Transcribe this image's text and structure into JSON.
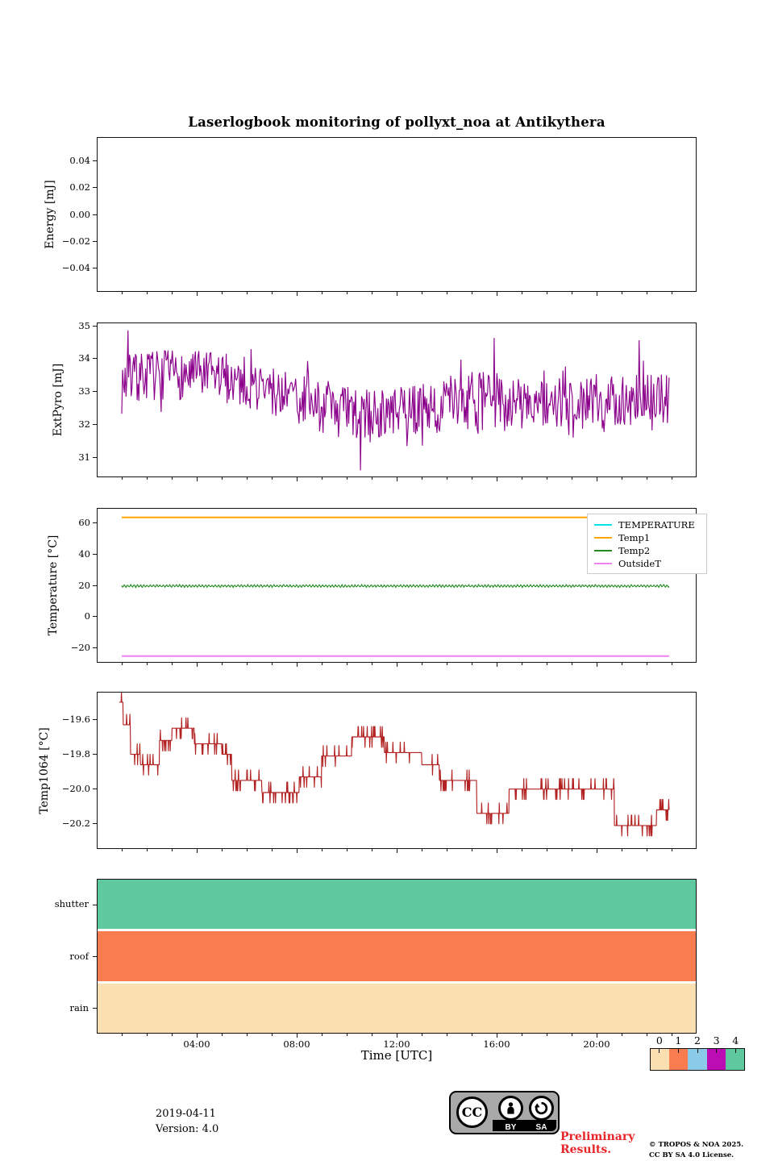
{
  "title": "Laserlogbook monitoring of pollyxt_noa at Antikythera",
  "time_axis": {
    "label": "Time [UTC]",
    "tick_hours": [
      4,
      8,
      12,
      16,
      20
    ],
    "tick_labels": [
      "04:00",
      "08:00",
      "12:00",
      "16:00",
      "20:00"
    ],
    "minor_every_hours": 1,
    "range_hours": [
      0,
      24
    ]
  },
  "chart_data": [
    {
      "type": "line",
      "ylabel": "Energy [mJ]",
      "ylim": [
        -0.058,
        0.058
      ],
      "yticks": [
        {
          "v": 0.04,
          "label": "0.04"
        },
        {
          "v": 0.02,
          "label": "0.02"
        },
        {
          "v": 0.0,
          "label": "0.00"
        },
        {
          "v": -0.02,
          "label": "−0.02"
        },
        {
          "v": -0.04,
          "label": "−0.04"
        }
      ],
      "series": []
    },
    {
      "type": "line",
      "ylabel": "ExtPyro [mJ]",
      "ylim": [
        30.4,
        35.1
      ],
      "yticks": [
        {
          "v": 35,
          "label": "35"
        },
        {
          "v": 34,
          "label": "34"
        },
        {
          "v": 33,
          "label": "33"
        },
        {
          "v": 32,
          "label": "32"
        },
        {
          "v": 31,
          "label": "31"
        }
      ],
      "series": [
        {
          "name": "ExtPyro",
          "color": "#8B008B",
          "style": "noisy",
          "x_range_hours": [
            1.0,
            22.9
          ],
          "n_points": 640,
          "seed": 7,
          "mean_keypoints": [
            [
              1.0,
              33.35
            ],
            [
              2.0,
              33.5
            ],
            [
              4.0,
              33.5
            ],
            [
              5.5,
              33.4
            ],
            [
              7.0,
              33.0
            ],
            [
              9.0,
              32.6
            ],
            [
              10.5,
              32.2
            ],
            [
              12.0,
              32.4
            ],
            [
              14.0,
              32.6
            ],
            [
              16.0,
              32.7
            ],
            [
              18.0,
              32.6
            ],
            [
              20.0,
              32.7
            ],
            [
              22.0,
              32.8
            ],
            [
              22.9,
              32.7
            ]
          ],
          "noise_amplitude_keypoints": [
            [
              1.0,
              0.75
            ],
            [
              4.0,
              0.75
            ],
            [
              8.0,
              0.8
            ],
            [
              10.5,
              0.9
            ],
            [
              12.0,
              0.7
            ],
            [
              15.0,
              0.95
            ],
            [
              18.0,
              0.78
            ],
            [
              20.0,
              0.85
            ],
            [
              22.9,
              0.8
            ]
          ],
          "extreme_points": [
            [
              1.25,
              34.85
            ],
            [
              10.55,
              30.62
            ],
            [
              15.9,
              34.62
            ],
            [
              21.7,
              34.55
            ]
          ]
        }
      ]
    },
    {
      "type": "line",
      "ylabel": "Temperature [°C]",
      "ylim": [
        -29.6,
        69.6
      ],
      "yticks": [
        {
          "v": 60,
          "label": "60"
        },
        {
          "v": 40,
          "label": "40"
        },
        {
          "v": 20,
          "label": "20"
        },
        {
          "v": 0,
          "label": "0"
        },
        {
          "v": -20,
          "label": "−20"
        }
      ],
      "legend": [
        {
          "label": "TEMPERATURE",
          "color": "#00E5E5"
        },
        {
          "label": "Temp1",
          "color": "#FFA500"
        },
        {
          "label": "Temp2",
          "color": "#228B22"
        },
        {
          "label": "OutsideT",
          "color": "#EE82EE"
        }
      ],
      "series": [
        {
          "name": "TEMPERATURE",
          "color": "#00E5E5",
          "style": "hidden",
          "visible": false
        },
        {
          "name": "Temp1",
          "color": "#FFA500",
          "style": "constant",
          "value": 63.5,
          "x_range_hours": [
            1.0,
            22.9
          ],
          "stroke": 2.0
        },
        {
          "name": "Temp2",
          "color": "#228B22",
          "style": "zigzag",
          "mean": 19.6,
          "amplitude": 0.85,
          "period_hours": 0.13,
          "noise": 0.25,
          "x_range_hours": [
            1.0,
            22.9
          ],
          "n_points": 900,
          "seed": 3,
          "stroke": 1.1
        },
        {
          "name": "OutsideT",
          "color": "#EE82EE",
          "style": "constant",
          "value": -25.3,
          "x_range_hours": [
            1.0,
            22.9
          ],
          "stroke": 2.0
        }
      ]
    },
    {
      "type": "step",
      "ylabel": "Temp1064 [°C]",
      "ylim": [
        -20.345,
        -19.44
      ],
      "yticks": [
        {
          "v": -19.6,
          "label": "−19.6"
        },
        {
          "v": -19.8,
          "label": "−19.8"
        },
        {
          "v": -20.0,
          "label": "−20.0"
        },
        {
          "v": -20.2,
          "label": "−20.2"
        }
      ],
      "series": [
        {
          "name": "Temp1064",
          "color": "#B22222",
          "style": "quantized_steps",
          "x_range_hours": [
            0.9,
            22.9
          ],
          "n_points": 1500,
          "seed": 11,
          "quantum": 0.06,
          "jitter_probability": 0.13,
          "segments": [
            [
              0.9,
              1.05,
              -19.5
            ],
            [
              1.05,
              1.35,
              -19.63
            ],
            [
              1.35,
              1.75,
              -19.8
            ],
            [
              1.75,
              2.5,
              -19.86
            ],
            [
              2.5,
              3.0,
              -19.72
            ],
            [
              3.0,
              3.9,
              -19.65
            ],
            [
              3.9,
              5.0,
              -19.74
            ],
            [
              5.0,
              5.4,
              -19.8
            ],
            [
              5.4,
              6.6,
              -19.95
            ],
            [
              6.6,
              8.1,
              -20.02
            ],
            [
              8.1,
              9.0,
              -19.93
            ],
            [
              9.0,
              10.2,
              -19.81
            ],
            [
              10.2,
              11.5,
              -19.7
            ],
            [
              11.5,
              13.0,
              -19.79
            ],
            [
              13.0,
              13.7,
              -19.86
            ],
            [
              13.7,
              15.2,
              -19.95
            ],
            [
              15.2,
              16.5,
              -20.14
            ],
            [
              16.5,
              20.7,
              -20.0
            ],
            [
              20.7,
              22.4,
              -20.21
            ],
            [
              22.4,
              22.9,
              -20.12
            ]
          ]
        }
      ]
    },
    {
      "type": "status_bands",
      "x_range_hours": [
        0,
        24
      ],
      "rows": [
        {
          "label": "shutter",
          "color": "#5FC89F"
        },
        {
          "label": "roof",
          "color": "#F97B50"
        },
        {
          "label": "rain",
          "color": "#FBDFB1"
        }
      ]
    }
  ],
  "colorbar": {
    "labels": [
      "0",
      "1",
      "2",
      "3",
      "4"
    ],
    "colors": [
      "#FBDFB1",
      "#F97B50",
      "#8BCBE8",
      "#BC0CB4",
      "#5FC89F"
    ]
  },
  "footer": {
    "date": "2019-04-11",
    "version": "Version: 4.0",
    "preliminary_line1": "Preliminary",
    "preliminary_line2": "Results.",
    "copyright_line1": "© TROPOS & NOA 2025.",
    "copyright_line2": "CC BY SA 4.0 License.",
    "cc_badge": {
      "cc": "CC",
      "by": "BY",
      "sa": "SA"
    }
  }
}
